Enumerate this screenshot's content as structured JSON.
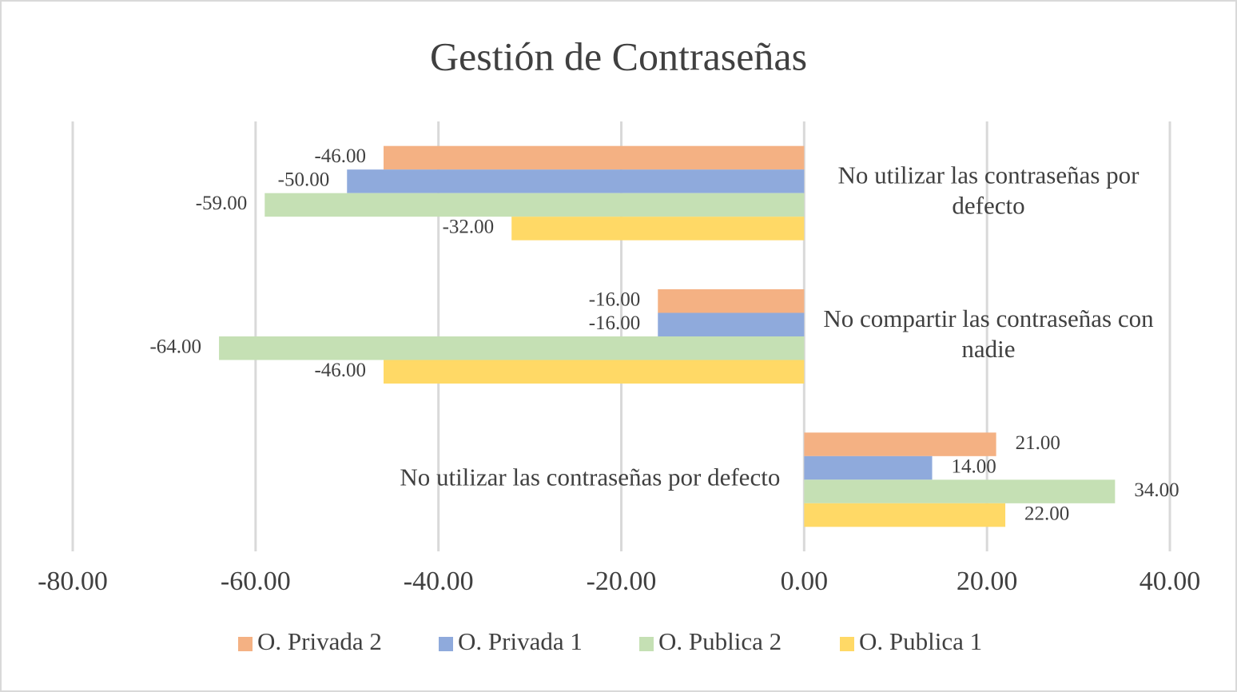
{
  "chart_data": {
    "type": "hbar",
    "title": "Gestión de Contraseñas",
    "categories": [
      "No utilizar las contraseñas por defecto",
      "No compartir las contraseñas con nadie",
      "No utilizar las contraseñas por defecto"
    ],
    "series": [
      {
        "name": "O. Privada 2",
        "color": "#f4b183",
        "values": [
          -46,
          -16,
          21
        ],
        "value_labels": [
          "-46.00",
          "-16.00",
          "21.00"
        ]
      },
      {
        "name": "O. Privada 1",
        "color": "#8faadc",
        "values": [
          -50,
          -16,
          14
        ],
        "value_labels": [
          "-50.00",
          "-16.00",
          "14.00"
        ]
      },
      {
        "name": "O. Publica 2",
        "color": "#c5e0b4",
        "values": [
          -59,
          -64,
          34
        ],
        "value_labels": [
          "-59.00",
          "-64.00",
          "34.00"
        ]
      },
      {
        "name": "O. Publica 1",
        "color": "#ffd966",
        "values": [
          -32,
          -46,
          22
        ],
        "value_labels": [
          "-32.00",
          "-46.00",
          "22.00"
        ]
      }
    ],
    "xlim": [
      -80,
      40
    ],
    "xticks": [
      {
        "value": -80,
        "label": "-80.00"
      },
      {
        "value": -60,
        "label": "-60.00"
      },
      {
        "value": -40,
        "label": "-40.00"
      },
      {
        "value": -20,
        "label": "-20.00"
      },
      {
        "value": 0,
        "label": "0.00"
      },
      {
        "value": 20,
        "label": "20.00"
      },
      {
        "value": 40,
        "label": "40.00"
      }
    ],
    "grid": true,
    "legend": "bottom"
  }
}
